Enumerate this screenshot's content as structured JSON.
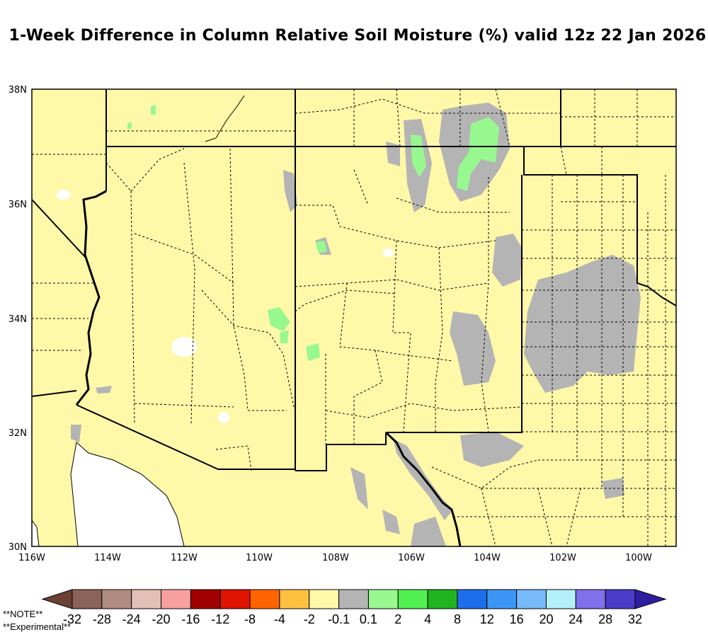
{
  "title": "1-Week Difference in Column Relative Soil Moisture (%) valid 12z 22 Jan 2026",
  "map": {
    "lat_ticks": [
      "38N",
      "36N",
      "34N",
      "32N",
      "30N"
    ],
    "lon_ticks": [
      "116W",
      "114W",
      "112W",
      "110W",
      "108W",
      "106W",
      "104W",
      "102W",
      "100W"
    ],
    "extent": {
      "lon": [
        -116,
        -99
      ],
      "lat": [
        30,
        38
      ]
    },
    "background_color": "#fff8a8",
    "dry_color": "#b4b4b4",
    "wet_color": "#98f890",
    "no_data_color": "#ffffff"
  },
  "colorbar": {
    "labels": [
      "-32",
      "-28",
      "-24",
      "-20",
      "-16",
      "-12",
      "-8",
      "-4",
      "-2",
      "-0.1",
      "0.1",
      "2",
      "4",
      "8",
      "12",
      "16",
      "20",
      "24",
      "28",
      "32"
    ],
    "low_arrow_color": "#6c4034",
    "high_arrow_color": "#2d1ea0",
    "colors": [
      "#8a6458",
      "#b08c80",
      "#e2c0b6",
      "#f8a0a0",
      "#a00000",
      "#e01400",
      "#ff6400",
      "#ffc040",
      "#fff8a8",
      "#b4b4b4",
      "#98f890",
      "#50f050",
      "#20b420",
      "#1e6eeb",
      "#3c96f5",
      "#78b9fa",
      "#b4f0fa",
      "#8070eb",
      "#4a3cc8"
    ]
  },
  "notes": [
    "**NOTE**",
    "**Experimental**"
  ]
}
